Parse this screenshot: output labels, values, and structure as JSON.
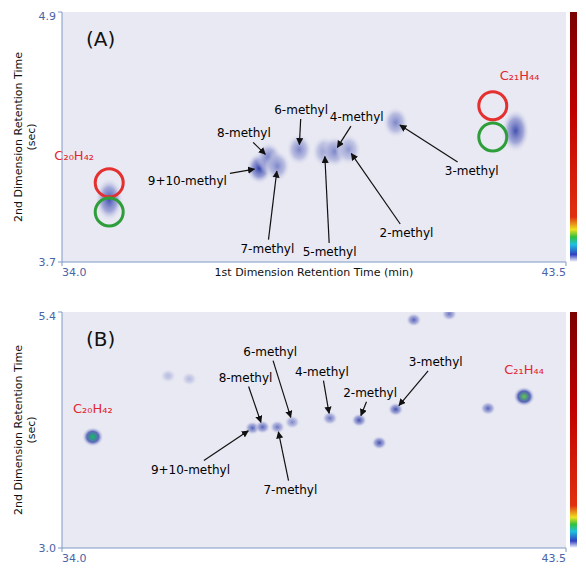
{
  "chart_data": [
    {
      "type": "scatter",
      "label": "(A)",
      "x_label": "1st Dimension Retention Time (min)",
      "y_label": "2nd Dimension Retention Time (sec)",
      "xlim": [
        34.0,
        43.5
      ],
      "xticks": [
        {
          "value": 34.0,
          "label": "34.0"
        },
        43.5
      ],
      "ylim": [
        3.7,
        4.9
      ],
      "yticks": [
        3.7,
        4.9
      ],
      "series": [
        {
          "marker": "blob",
          "color": "#e3262f",
          "x": [
            34.89,
            42.55
          ],
          "values": [
            4.0,
            4.33
          ],
          "intensity": [
            0.45,
            0.45
          ],
          "labels": [
            "C₂₀H₄₂",
            "C₂₁H₄₄"
          ]
        },
        {
          "marker": "blob",
          "color": "#000000",
          "x": [
            37.72,
            37.9,
            38.06,
            38.47,
            38.95,
            39.14,
            39.4,
            40.29
          ],
          "values": [
            4.15,
            4.2,
            4.16,
            4.24,
            4.23,
            4.23,
            4.24,
            4.37
          ],
          "intensity": [
            0.5,
            0.35,
            0.3,
            0.3,
            0.25,
            0.3,
            0.25,
            0.3
          ],
          "labels": [
            "9+10-methyl",
            "8-methyl",
            "7-methyl",
            "6-methyl",
            "5-methyl",
            "4-methyl",
            "2-methyl",
            "3-methyl"
          ]
        },
        {
          "marker": "ring",
          "color": "#e53030",
          "x": [
            34.89,
            42.12
          ],
          "values": [
            4.08,
            4.45
          ]
        },
        {
          "marker": "ring",
          "color": "#2e9e3a",
          "x": [
            34.89,
            42.12
          ],
          "values": [
            3.94,
            4.3
          ]
        }
      ]
    },
    {
      "type": "scatter",
      "label": "(B)",
      "y_label": "2nd Dimension Retention Time (sec)",
      "xlim": [
        34.0,
        43.5
      ],
      "xticks": [
        {
          "value": 34.0,
          "label": "34.0"
        },
        43.5
      ],
      "ylim": [
        3.0,
        5.4
      ],
      "yticks": [
        {
          "value": 3.0,
          "label": "3.0"
        },
        5.4
      ],
      "series": [
        {
          "marker": "blob",
          "color": "#e3262f",
          "x": [
            34.58,
            42.71
          ],
          "values": [
            4.13,
            4.54
          ],
          "intensity": [
            0.85,
            0.9
          ],
          "labels": [
            "C₂₀H₄₂",
            "C₂₁H₄₄"
          ]
        },
        {
          "marker": "blob",
          "color": "#000000",
          "x": [
            37.59,
            37.78,
            38.06,
            38.34,
            39.05,
            39.6,
            40.29
          ],
          "values": [
            4.22,
            4.23,
            4.23,
            4.28,
            4.32,
            4.3,
            4.41
          ],
          "intensity": [
            0.4,
            0.4,
            0.35,
            0.3,
            0.35,
            0.45,
            0.45
          ],
          "labels": [
            "9+10-methyl",
            "8-methyl",
            "7-methyl",
            "6-methyl",
            "4-methyl",
            "2-methyl",
            "3-methyl"
          ]
        },
        {
          "marker": "blob",
          "x": [
            39.98,
            40.63,
            41.3,
            42.03,
            36.0,
            36.4
          ],
          "values": [
            4.07,
            5.32,
            5.38,
            4.42,
            4.75,
            4.72
          ],
          "intensity": [
            0.45,
            0.4,
            0.35,
            0.4,
            0.15,
            0.15
          ]
        }
      ]
    }
  ]
}
